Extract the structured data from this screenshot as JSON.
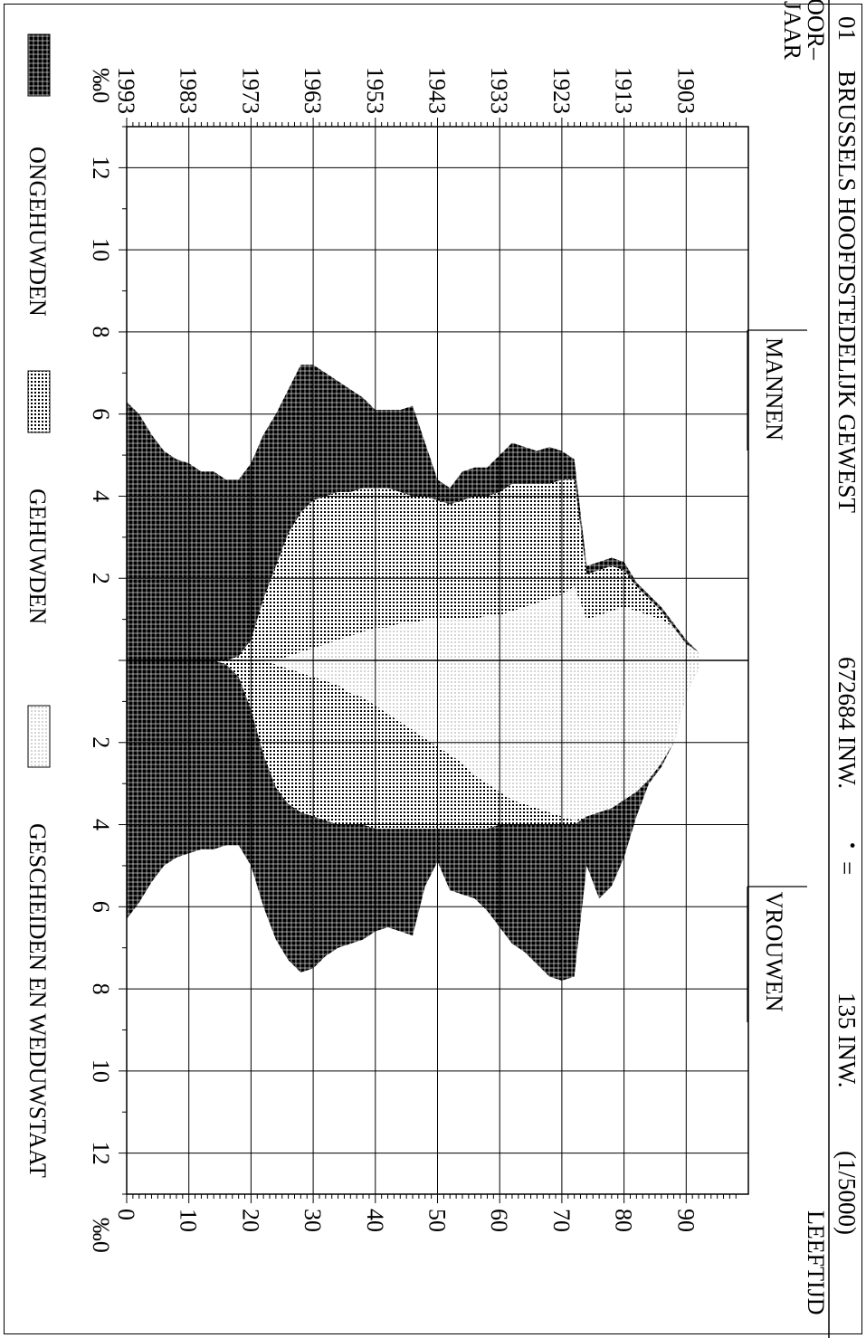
{
  "chart_data": {
    "type": "population-pyramid",
    "title": {
      "code": "01",
      "region": "BRUSSELS HOOFDSTEDELIJK GEWEST",
      "population": "672684 INW.",
      "dot_symbol": "•",
      "equals": "=",
      "dot_value": "135 INW.",
      "scale": "(1/5000)"
    },
    "left_axis_title": [
      "GEBOOR–",
      "TEJAAR"
    ],
    "right_axis_title": "LEEFTIJD",
    "birth_year_ticks": [
      "1903",
      "1913",
      "1923",
      "1933",
      "1943",
      "1953",
      "1963",
      "1973",
      "1983",
      "1993"
    ],
    "age_ticks": [
      "0",
      "10",
      "20",
      "30",
      "40",
      "50",
      "60",
      "70",
      "80",
      "90"
    ],
    "per_mille_unit": "‰",
    "per_mille_ticks_men": [
      "12",
      "10",
      "8",
      "6",
      "4",
      "2"
    ],
    "per_mille_ticks_women": [
      "2",
      "4",
      "6",
      "8",
      "10",
      "12"
    ],
    "side_labels": {
      "men": "MANNEN",
      "women": "VROUWEN"
    },
    "legend": [
      {
        "label": "ONGEHUWDEN",
        "pattern": "dense-dark"
      },
      {
        "label": "GEHUWDEN",
        "pattern": "medium-dots"
      },
      {
        "label": "GESCHEIDEN EN WEDUWSTAAT",
        "pattern": "light-dots"
      }
    ],
    "xlim_per_mille": [
      -13,
      13
    ],
    "ylim_age": [
      0,
      100
    ],
    "age_sample_points": [
      0,
      2,
      4,
      6,
      8,
      10,
      12,
      14,
      16,
      18,
      20,
      22,
      24,
      26,
      28,
      30,
      32,
      34,
      36,
      38,
      40,
      42,
      44,
      46,
      48,
      50,
      52,
      54,
      56,
      58,
      60,
      62,
      64,
      66,
      68,
      70,
      72,
      74,
      76,
      78,
      80,
      82,
      84,
      86,
      88,
      90,
      92
    ],
    "men": {
      "total": [
        6.3,
        6.0,
        5.5,
        5.1,
        4.9,
        4.8,
        4.6,
        4.6,
        4.4,
        4.4,
        4.8,
        5.5,
        6.0,
        6.6,
        7.2,
        7.2,
        7.0,
        6.8,
        6.6,
        6.4,
        6.1,
        6.1,
        6.1,
        6.2,
        5.3,
        4.4,
        4.2,
        4.6,
        4.7,
        4.7,
        5.0,
        5.3,
        5.2,
        5.1,
        5.2,
        5.1,
        4.9,
        2.3,
        2.4,
        2.5,
        2.4,
        1.9,
        1.6,
        1.3,
        0.9,
        0.5,
        0.2
      ],
      "non_single": [
        0.0,
        0.0,
        0.0,
        0.0,
        0.0,
        0.0,
        0.0,
        0.0,
        0.0,
        0.1,
        0.5,
        1.5,
        2.3,
        3.1,
        3.6,
        3.9,
        4.0,
        4.1,
        4.1,
        4.2,
        4.2,
        4.2,
        4.1,
        4.0,
        4.0,
        3.9,
        3.8,
        3.9,
        4.0,
        4.0,
        4.1,
        4.3,
        4.3,
        4.3,
        4.3,
        4.4,
        4.4,
        2.1,
        2.2,
        2.3,
        2.2,
        1.8,
        1.5,
        1.2,
        0.8,
        0.4,
        0.2
      ],
      "widowed_div": [
        0.0,
        0.0,
        0.0,
        0.0,
        0.0,
        0.0,
        0.0,
        0.0,
        0.0,
        0.0,
        0.0,
        0.0,
        0.0,
        0.1,
        0.2,
        0.3,
        0.4,
        0.5,
        0.6,
        0.7,
        0.8,
        0.8,
        0.9,
        0.9,
        1.0,
        1.0,
        1.0,
        1.0,
        1.0,
        1.1,
        1.1,
        1.2,
        1.3,
        1.4,
        1.5,
        1.6,
        1.8,
        1.0,
        1.1,
        1.2,
        1.3,
        1.2,
        1.1,
        1.0,
        0.8,
        0.4,
        0.2
      ]
    },
    "women": {
      "total": [
        6.3,
        5.9,
        5.4,
        5.0,
        4.8,
        4.7,
        4.6,
        4.6,
        4.5,
        4.5,
        5.0,
        6.0,
        6.8,
        7.3,
        7.6,
        7.5,
        7.2,
        7.0,
        6.9,
        6.8,
        6.6,
        6.5,
        6.6,
        6.7,
        5.5,
        4.9,
        5.6,
        5.7,
        5.8,
        6.1,
        6.5,
        6.9,
        7.1,
        7.4,
        7.7,
        7.8,
        7.7,
        5.0,
        5.8,
        5.5,
        4.8,
        3.8,
        3.0,
        2.6,
        2.0,
        0.8,
        0.2
      ],
      "non_single": [
        0.0,
        0.0,
        0.0,
        0.0,
        0.0,
        0.0,
        0.0,
        0.0,
        0.1,
        0.4,
        1.2,
        2.3,
        3.1,
        3.5,
        3.7,
        3.8,
        3.9,
        4.0,
        4.0,
        4.0,
        4.1,
        4.1,
        4.1,
        4.1,
        4.1,
        4.1,
        4.1,
        4.1,
        4.1,
        4.1,
        4.0,
        4.0,
        4.0,
        4.0,
        4.0,
        4.0,
        4.0,
        3.8,
        3.7,
        3.6,
        3.4,
        3.2,
        2.9,
        2.5,
        2.0,
        0.8,
        0.2
      ],
      "widowed_div": [
        0.0,
        0.0,
        0.0,
        0.0,
        0.0,
        0.0,
        0.0,
        0.0,
        0.0,
        0.0,
        0.0,
        0.0,
        0.1,
        0.2,
        0.3,
        0.4,
        0.5,
        0.6,
        0.8,
        0.9,
        1.1,
        1.3,
        1.5,
        1.7,
        1.9,
        2.1,
        2.3,
        2.5,
        2.8,
        3.0,
        3.2,
        3.4,
        3.5,
        3.6,
        3.7,
        3.8,
        3.9,
        3.8,
        3.7,
        3.6,
        3.4,
        3.2,
        2.9,
        2.5,
        2.0,
        0.8,
        0.2
      ]
    }
  }
}
